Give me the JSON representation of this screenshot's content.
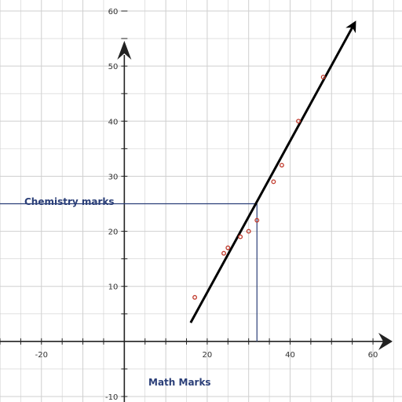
{
  "chart_data": {
    "type": "scatter",
    "xlabel": "Math Marks",
    "ylabel": "Chemistry marks",
    "xlim": [
      -30,
      67
    ],
    "ylim": [
      -11,
      62
    ],
    "grid": true,
    "x_ticks": [
      -20,
      20,
      40,
      60
    ],
    "y_ticks": [
      -10,
      10,
      20,
      30,
      40,
      50,
      60
    ],
    "x_tick_labels": [
      "-20",
      "20",
      "40",
      "60"
    ],
    "y_tick_labels": [
      "-10",
      "10",
      "20",
      "30",
      "40",
      "50",
      "60"
    ],
    "points": [
      {
        "x": 17,
        "y": 8
      },
      {
        "x": 24,
        "y": 16
      },
      {
        "x": 25,
        "y": 17
      },
      {
        "x": 28,
        "y": 19
      },
      {
        "x": 30,
        "y": 20
      },
      {
        "x": 32,
        "y": 22
      },
      {
        "x": 36,
        "y": 29
      },
      {
        "x": 38,
        "y": 32
      },
      {
        "x": 42,
        "y": 40
      },
      {
        "x": 48,
        "y": 48
      }
    ],
    "fit_line": {
      "x": [
        16,
        55
      ],
      "y": [
        3.4,
        57
      ]
    },
    "projection": {
      "x": 32,
      "y": 25
    },
    "colors": {
      "grid": "#cfcfcf",
      "axis": "#222222",
      "fit_line": "#000000",
      "points": "#c0392b",
      "projection": "#2b3f78",
      "labels": "#2b3f78"
    }
  }
}
